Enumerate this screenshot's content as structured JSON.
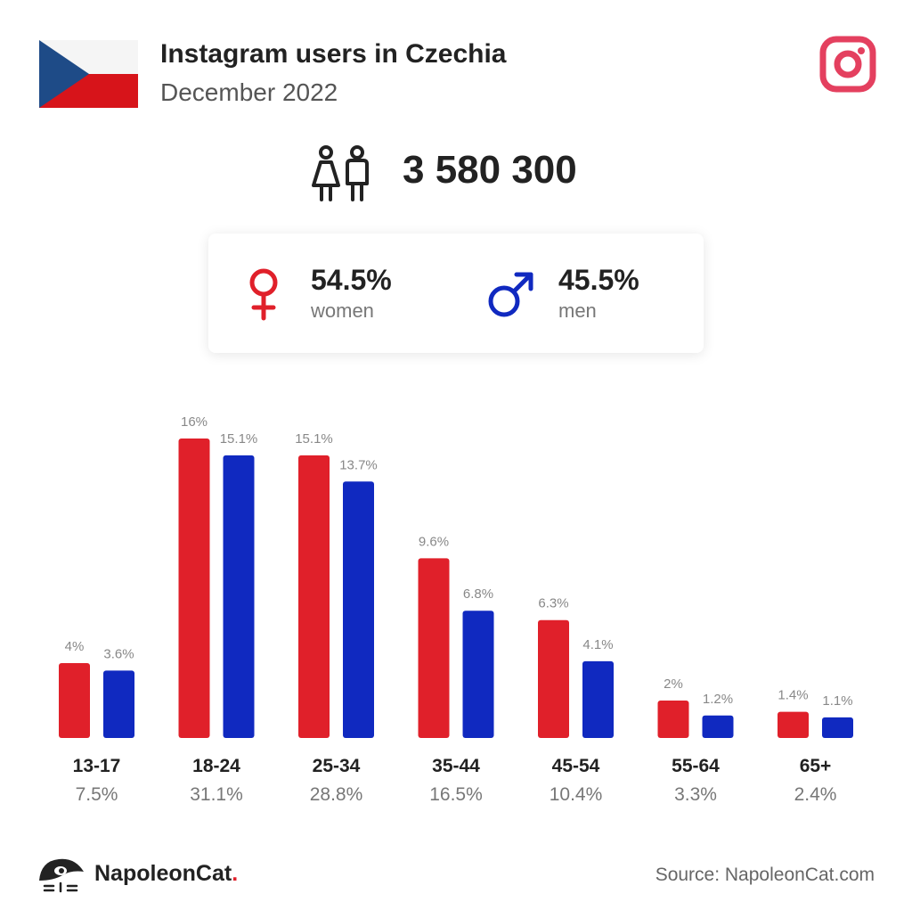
{
  "header": {
    "title": "Instagram users in Czechia",
    "subtitle": "December 2022"
  },
  "total": {
    "value": "3 580 300",
    "icon": "users-icon"
  },
  "gender": {
    "women": {
      "pct": "54.5%",
      "label": "women",
      "icon": "female-symbol-icon",
      "color": "#e0202a"
    },
    "men": {
      "pct": "45.5%",
      "label": "men",
      "icon": "male-symbol-icon",
      "color": "#1029c0"
    }
  },
  "chart_data": {
    "type": "bar",
    "categories": [
      "13-17",
      "18-24",
      "25-34",
      "35-44",
      "45-54",
      "55-64",
      "65+"
    ],
    "category_totals": [
      "7.5%",
      "31.1%",
      "28.8%",
      "16.5%",
      "10.4%",
      "3.3%",
      "2.4%"
    ],
    "series": [
      {
        "color": "#e0202a",
        "values": [
          4,
          16,
          15.1,
          9.6,
          6.3,
          2,
          1.4
        ],
        "labels": [
          "4%",
          "16%",
          "15.1%",
          "9.6%",
          "6.3%",
          "2%",
          "1.4%"
        ]
      },
      {
        "color": "#1029c0",
        "values": [
          3.6,
          15.1,
          13.7,
          6.8,
          4.1,
          1.2,
          1.1
        ],
        "labels": [
          "3.6%",
          "15.1%",
          "13.7%",
          "6.8%",
          "4.1%",
          "1.2%",
          "1.1%"
        ]
      }
    ],
    "ylim": [
      0,
      16
    ],
    "grid": false
  },
  "footer": {
    "brand": "NapoleonCat",
    "brand_dot": ".",
    "source": "Source: NapoleonCat.com"
  },
  "colors": {
    "instagram": "#e4405f",
    "flag_blue": "#1e4b87",
    "flag_red": "#d7141a"
  }
}
